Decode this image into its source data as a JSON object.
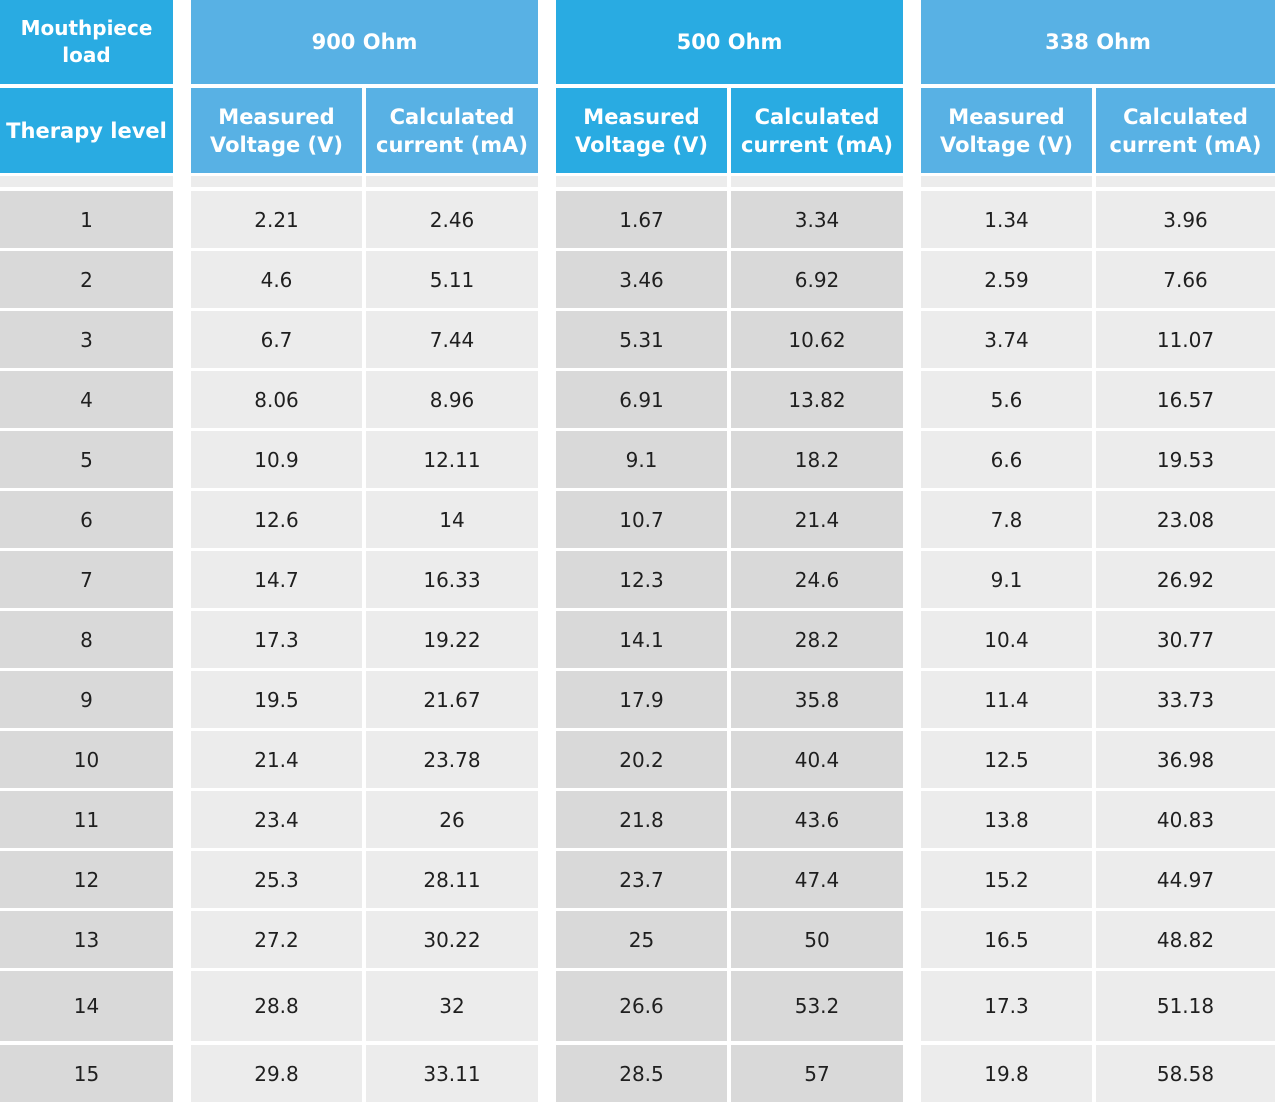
{
  "colors": {
    "header_dark": "#29abe2",
    "header_light": "#58b1e4",
    "cell_dark": "#d9d9d9",
    "cell_light": "#ececec"
  },
  "header": {
    "corner_top": "Mouthpiece load",
    "corner_bottom": "Therapy level",
    "loads": [
      {
        "label": "900 Ohm",
        "measured": "Measured Voltage (V)",
        "calculated": "Calculated current (mA)"
      },
      {
        "label": "500 Ohm",
        "measured": "Measured Voltage (V)",
        "calculated": "Calculated current (mA)"
      },
      {
        "label": "338 Ohm",
        "measured": "Measured Voltage (V)",
        "calculated": "Calculated current (mA)"
      }
    ]
  },
  "rows": [
    {
      "level": "1",
      "v900": "2.21",
      "c900": "2.46",
      "v500": "1.67",
      "c500": "3.34",
      "v338": "1.34",
      "c338": "3.96"
    },
    {
      "level": "2",
      "v900": "4.6",
      "c900": "5.11",
      "v500": "3.46",
      "c500": "6.92",
      "v338": "2.59",
      "c338": "7.66"
    },
    {
      "level": "3",
      "v900": "6.7",
      "c900": "7.44",
      "v500": "5.31",
      "c500": "10.62",
      "v338": "3.74",
      "c338": "11.07"
    },
    {
      "level": "4",
      "v900": "8.06",
      "c900": "8.96",
      "v500": "6.91",
      "c500": "13.82",
      "v338": "5.6",
      "c338": "16.57"
    },
    {
      "level": "5",
      "v900": "10.9",
      "c900": "12.11",
      "v500": "9.1",
      "c500": "18.2",
      "v338": "6.6",
      "c338": "19.53"
    },
    {
      "level": "6",
      "v900": "12.6",
      "c900": "14",
      "v500": "10.7",
      "c500": "21.4",
      "v338": "7.8",
      "c338": "23.08"
    },
    {
      "level": "7",
      "v900": "14.7",
      "c900": "16.33",
      "v500": "12.3",
      "c500": "24.6",
      "v338": "9.1",
      "c338": "26.92"
    },
    {
      "level": "8",
      "v900": "17.3",
      "c900": "19.22",
      "v500": "14.1",
      "c500": "28.2",
      "v338": "10.4",
      "c338": "30.77"
    },
    {
      "level": "9",
      "v900": "19.5",
      "c900": "21.67",
      "v500": "17.9",
      "c500": "35.8",
      "v338": "11.4",
      "c338": "33.73"
    },
    {
      "level": "10",
      "v900": "21.4",
      "c900": "23.78",
      "v500": "20.2",
      "c500": "40.4",
      "v338": "12.5",
      "c338": "36.98"
    },
    {
      "level": "11",
      "v900": "23.4",
      "c900": "26",
      "v500": "21.8",
      "c500": "43.6",
      "v338": "13.8",
      "c338": "40.83"
    },
    {
      "level": "12",
      "v900": "25.3",
      "c900": "28.11",
      "v500": "23.7",
      "c500": "47.4",
      "v338": "15.2",
      "c338": "44.97"
    },
    {
      "level": "13",
      "v900": "27.2",
      "c900": "30.22",
      "v500": "25",
      "c500": "50",
      "v338": "16.5",
      "c338": "48.82"
    },
    {
      "level": "14",
      "v900": "28.8",
      "c900": "32",
      "v500": "26.6",
      "c500": "53.2",
      "v338": "17.3",
      "c338": "51.18"
    },
    {
      "level": "15",
      "v900": "29.8",
      "c900": "33.11",
      "v500": "28.5",
      "c500": "57",
      "v338": "19.8",
      "c338": "58.58"
    }
  ]
}
